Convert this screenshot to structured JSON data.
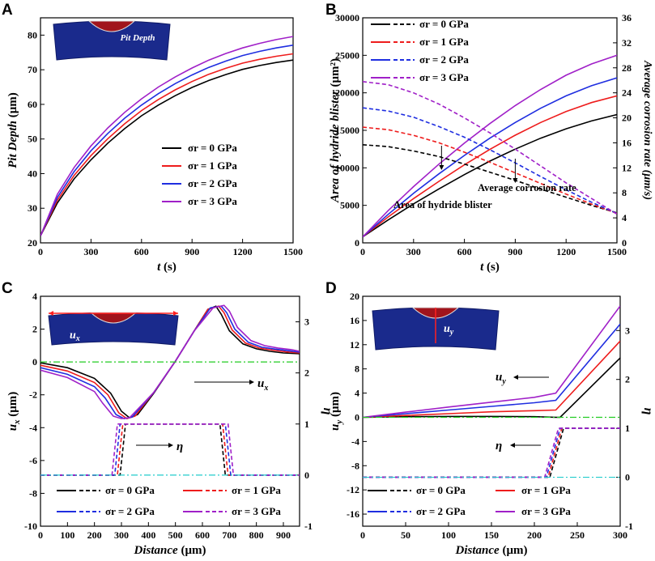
{
  "chart_data": [
    {
      "panel": "A",
      "type": "line",
      "xlabel_parts": [
        "t",
        " (s)"
      ],
      "ylabel_parts": [
        "Pit Depth",
        " (μm)"
      ],
      "xlim": [
        0,
        1500
      ],
      "ylim": [
        20,
        85
      ],
      "xticks": [
        "0",
        "300",
        "600",
        "900",
        "1200",
        "1500"
      ],
      "yticks": [
        "20",
        "30",
        "40",
        "50",
        "60",
        "70",
        "80"
      ],
      "inset_label": "Pit Depth",
      "legend_position": "right-middle",
      "series": [
        {
          "name": "σr = 0 GPa",
          "color": "#000000",
          "x": [
            0,
            100,
            200,
            300,
            400,
            500,
            600,
            700,
            800,
            900,
            1000,
            1100,
            1200,
            1300,
            1400,
            1500
          ],
          "y": [
            22,
            31.5,
            38.5,
            44,
            48.8,
            53,
            56.7,
            59.8,
            62.5,
            64.9,
            66.9,
            68.6,
            70.1,
            71.2,
            72.1,
            72.8
          ]
        },
        {
          "name": "σr = 1 GPa",
          "color": "#ee1c1c",
          "x": [
            0,
            100,
            200,
            300,
            400,
            500,
            600,
            700,
            800,
            900,
            1000,
            1100,
            1200,
            1300,
            1400,
            1500
          ],
          "y": [
            22,
            32.3,
            39.5,
            45.2,
            50.1,
            54.4,
            58.2,
            61.4,
            64.2,
            66.6,
            68.7,
            70.4,
            71.9,
            73,
            73.9,
            74.6
          ]
        },
        {
          "name": "σr = 2 GPa",
          "color": "#1f2ee0",
          "x": [
            0,
            100,
            200,
            300,
            400,
            500,
            600,
            700,
            800,
            900,
            1000,
            1100,
            1200,
            1300,
            1400,
            1500
          ],
          "y": [
            22,
            33.1,
            40.6,
            46.6,
            51.6,
            56,
            59.8,
            63.1,
            66,
            68.5,
            70.7,
            72.5,
            74.1,
            75.3,
            76.3,
            77.1
          ]
        },
        {
          "name": "σr = 3 GPa",
          "color": "#a020c8",
          "x": [
            0,
            100,
            200,
            300,
            400,
            500,
            600,
            700,
            800,
            900,
            1000,
            1100,
            1200,
            1300,
            1400,
            1500
          ],
          "y": [
            22,
            34,
            41.8,
            48,
            53.2,
            57.7,
            61.6,
            65,
            67.9,
            70.5,
            72.8,
            74.7,
            76.3,
            77.6,
            78.7,
            79.6
          ]
        }
      ]
    },
    {
      "panel": "B",
      "type": "line",
      "xlabel_parts": [
        "t",
        " (s)"
      ],
      "ylabel_parts": [
        "Area of hydride blister",
        " (μm²)"
      ],
      "y2label": "Average corrosion rate (μm/s)",
      "xlim": [
        0,
        1500
      ],
      "ylim": [
        0,
        30000
      ],
      "y2lim": [
        0,
        36
      ],
      "xticks": [
        "0",
        "300",
        "600",
        "900",
        "1200",
        "1500"
      ],
      "yticks": [
        "0",
        "5000",
        "10000",
        "15000",
        "20000",
        "25000",
        "30000"
      ],
      "y2ticks": [
        "0",
        "4",
        "8",
        "12",
        "16",
        "20",
        "24",
        "28",
        "32",
        "36"
      ],
      "annotations": [
        "Average corrosion rate",
        "Area of hydride blister"
      ],
      "legend_position": "top-left",
      "series": [
        {
          "name": "σr = 0 GPa",
          "style": "solid",
          "axis": "left",
          "color": "#000000",
          "x": [
            0,
            150,
            300,
            450,
            600,
            750,
            900,
            1050,
            1200,
            1350,
            1500
          ],
          "y": [
            800,
            3050,
            5200,
            7200,
            9100,
            10900,
            12500,
            13950,
            15200,
            16250,
            17100
          ]
        },
        {
          "name": "σr = 1 GPa",
          "style": "solid",
          "axis": "left",
          "color": "#ee1c1c",
          "x": [
            0,
            150,
            300,
            450,
            600,
            750,
            900,
            1050,
            1200,
            1350,
            1500
          ],
          "y": [
            800,
            3450,
            5900,
            8200,
            10400,
            12450,
            14350,
            16050,
            17500,
            18700,
            19600
          ]
        },
        {
          "name": "σr = 2 GPa",
          "style": "solid",
          "axis": "left",
          "color": "#1f2ee0",
          "x": [
            0,
            150,
            300,
            450,
            600,
            750,
            900,
            1050,
            1200,
            1350,
            1500
          ],
          "y": [
            800,
            3800,
            6600,
            9200,
            11650,
            13950,
            16050,
            17950,
            19600,
            20950,
            22000
          ]
        },
        {
          "name": "σr = 3 GPa",
          "style": "solid",
          "axis": "left",
          "color": "#a020c8",
          "x": [
            0,
            150,
            300,
            450,
            600,
            750,
            900,
            1050,
            1200,
            1350,
            1500
          ],
          "y": [
            800,
            4300,
            7500,
            10500,
            13300,
            15900,
            18300,
            20450,
            22350,
            23850,
            25000
          ]
        },
        {
          "name": "σr = 0 GPa",
          "style": "dashed",
          "axis": "right",
          "color": "#000000",
          "x": [
            0,
            150,
            300,
            450,
            600,
            750,
            900,
            1050,
            1200,
            1350,
            1500
          ],
          "y": [
            15.7,
            15.4,
            14.7,
            13.8,
            12.6,
            11.3,
            10,
            8.6,
            7.3,
            6,
            4.8
          ]
        },
        {
          "name": "σr = 1 GPa",
          "style": "dashed",
          "axis": "right",
          "color": "#ee1c1c",
          "x": [
            0,
            150,
            300,
            450,
            600,
            750,
            900,
            1050,
            1200,
            1350,
            1500
          ],
          "y": [
            18.5,
            18.1,
            17.2,
            16,
            14.5,
            12.9,
            11.2,
            9.5,
            7.8,
            6.2,
            4.7
          ]
        },
        {
          "name": "σr = 2 GPa",
          "style": "dashed",
          "axis": "right",
          "color": "#1f2ee0",
          "x": [
            0,
            150,
            300,
            450,
            600,
            750,
            900,
            1050,
            1200,
            1350,
            1500
          ],
          "y": [
            21.6,
            21.1,
            20.1,
            18.6,
            16.9,
            14.9,
            12.8,
            10.6,
            8.5,
            6.5,
            4.7
          ]
        },
        {
          "name": "σr = 3 GPa",
          "style": "dashed",
          "axis": "right",
          "color": "#a020c8",
          "x": [
            0,
            150,
            300,
            450,
            600,
            750,
            900,
            1050,
            1200,
            1350,
            1500
          ],
          "y": [
            25.8,
            25.3,
            24,
            22.2,
            20,
            17.6,
            15,
            12.3,
            9.6,
            7.1,
            4.6
          ]
        }
      ]
    },
    {
      "panel": "C",
      "type": "line",
      "xlabel_parts": [
        "Distance",
        " (μm)"
      ],
      "ylabel_parts": [
        "u",
        "x",
        " (μm)"
      ],
      "y2label": "η",
      "xlim": [
        0,
        960
      ],
      "ylim": [
        -10,
        4
      ],
      "y2lim": [
        -1,
        3.5
      ],
      "xticks": [
        "0",
        "100",
        "200",
        "300",
        "400",
        "500",
        "600",
        "700",
        "800",
        "900"
      ],
      "yticks": [
        "-10",
        "-8",
        "-6",
        "-4",
        "-2",
        "0",
        "2",
        "4"
      ],
      "y2ticks": [
        "-1",
        "0",
        "1",
        "2",
        "3"
      ],
      "annotations": [
        "u",
        "x",
        "η"
      ],
      "legend": [
        "σr = 0 GPa",
        "σr = 1 GPa",
        "σr = 2 GPa",
        "σr = 3 GPa"
      ],
      "legend_position": "bottom",
      "series": [
        {
          "name": "σr = 0 GPa",
          "style": "solid",
          "axis": "left",
          "color": "#000000",
          "x": [
            0,
            100,
            200,
            260,
            300,
            330,
            360,
            420,
            500,
            570,
            620,
            650,
            670,
            700,
            750,
            800,
            850,
            900,
            960
          ],
          "y": [
            -0.05,
            -0.35,
            -1.0,
            -1.9,
            -3.0,
            -3.4,
            -3.2,
            -1.9,
            0.05,
            1.9,
            3.2,
            3.4,
            2.9,
            1.9,
            1.1,
            0.8,
            0.65,
            0.55,
            0.5
          ]
        },
        {
          "name": "σr = 1 GPa",
          "style": "solid",
          "axis": "left",
          "color": "#ee1c1c",
          "x": [
            0,
            100,
            200,
            250,
            290,
            320,
            350,
            420,
            500,
            570,
            620,
            660,
            680,
            710,
            760,
            810,
            860,
            910,
            960
          ],
          "y": [
            -0.2,
            -0.55,
            -1.25,
            -2.0,
            -3.1,
            -3.45,
            -3.3,
            -1.85,
            0.05,
            1.9,
            3.2,
            3.4,
            3.0,
            1.95,
            1.15,
            0.85,
            0.72,
            0.62,
            0.55
          ]
        },
        {
          "name": "σr = 2 GPa",
          "style": "solid",
          "axis": "left",
          "color": "#1f2ee0",
          "x": [
            0,
            100,
            200,
            240,
            280,
            310,
            340,
            420,
            500,
            570,
            630,
            670,
            690,
            720,
            770,
            820,
            870,
            920,
            960
          ],
          "y": [
            -0.35,
            -0.75,
            -1.5,
            -2.2,
            -3.2,
            -3.45,
            -3.35,
            -1.85,
            0.05,
            1.9,
            3.3,
            3.4,
            3.0,
            2.0,
            1.2,
            0.9,
            0.78,
            0.68,
            0.6
          ]
        },
        {
          "name": "σr = 3 GPa",
          "style": "solid",
          "axis": "left",
          "color": "#a020c8",
          "x": [
            0,
            100,
            200,
            230,
            270,
            300,
            330,
            420,
            500,
            570,
            640,
            680,
            700,
            730,
            780,
            830,
            880,
            930,
            960
          ],
          "y": [
            -0.5,
            -0.95,
            -1.8,
            -2.5,
            -3.3,
            -3.45,
            -3.4,
            -1.85,
            0.05,
            1.9,
            3.3,
            3.45,
            3.1,
            2.1,
            1.3,
            1.0,
            0.85,
            0.75,
            0.65
          ]
        },
        {
          "name": "σr = 0 GPa",
          "style": "dashed",
          "axis": "right",
          "color": "#000000",
          "x": [
            0,
            295,
            305,
            315,
            665,
            675,
            685,
            960
          ],
          "y": [
            0,
            0,
            0.5,
            1,
            1,
            0.5,
            0,
            0
          ]
        },
        {
          "name": "σr = 1 GPa",
          "style": "dashed",
          "axis": "right",
          "color": "#ee1c1c",
          "x": [
            0,
            285,
            295,
            305,
            675,
            685,
            695,
            960
          ],
          "y": [
            0,
            0,
            0.5,
            1,
            1,
            0.5,
            0,
            0
          ]
        },
        {
          "name": "σr = 2 GPa",
          "style": "dashed",
          "axis": "right",
          "color": "#1f2ee0",
          "x": [
            0,
            275,
            285,
            295,
            685,
            695,
            705,
            960
          ],
          "y": [
            0,
            0,
            0.5,
            1,
            1,
            0.5,
            0,
            0
          ]
        },
        {
          "name": "σr = 3 GPa",
          "style": "dashed",
          "axis": "right",
          "color": "#a020c8",
          "x": [
            0,
            265,
            275,
            285,
            695,
            705,
            715,
            960
          ],
          "y": [
            0,
            0,
            0.5,
            1,
            1,
            0.5,
            0,
            0
          ]
        }
      ]
    },
    {
      "panel": "D",
      "type": "line",
      "xlabel_parts": [
        "Distance",
        " (μm)"
      ],
      "ylabel_parts": [
        "u",
        "y",
        " (μm)"
      ],
      "y2label": "η",
      "xlim": [
        0,
        300
      ],
      "ylim": [
        -18,
        20
      ],
      "y2lim": [
        -1,
        3.7
      ],
      "xticks": [
        "0",
        "50",
        "100",
        "150",
        "200",
        "250",
        "300"
      ],
      "yticks": [
        "-16",
        "-12",
        "-8",
        "-4",
        "0",
        "4",
        "8",
        "12",
        "16",
        "20"
      ],
      "y2ticks": [
        "-1",
        "0",
        "1",
        "2",
        "3"
      ],
      "annotations": [
        "u",
        "y",
        "η"
      ],
      "legend": [
        "σr = 0 GPa",
        "σr = 1 GPa",
        "σr = 2 GPa",
        "σr = 3 GPa"
      ],
      "legend_position": "bottom",
      "series": [
        {
          "name": "σr = 0 GPa",
          "style": "solid",
          "axis": "left",
          "color": "#000000",
          "x": [
            0,
            50,
            100,
            150,
            200,
            225,
            230,
            300
          ],
          "y": [
            0,
            0.1,
            0.15,
            0.15,
            0.1,
            0,
            0,
            9.8
          ]
        },
        {
          "name": "σr = 1 GPa",
          "style": "solid",
          "axis": "left",
          "color": "#ee1c1c",
          "x": [
            0,
            50,
            100,
            150,
            200,
            225,
            300
          ],
          "y": [
            0,
            0.3,
            0.6,
            0.9,
            1.1,
            1.2,
            12.6
          ]
        },
        {
          "name": "σr = 2 GPa",
          "style": "solid",
          "axis": "left",
          "color": "#1f2ee0",
          "x": [
            0,
            50,
            100,
            150,
            200,
            225,
            300
          ],
          "y": [
            0,
            0.6,
            1.2,
            1.8,
            2.4,
            2.8,
            15.4
          ]
        },
        {
          "name": "σr = 3 GPa",
          "style": "solid",
          "axis": "left",
          "color": "#a020c8",
          "x": [
            0,
            50,
            100,
            150,
            200,
            225,
            300
          ],
          "y": [
            0,
            0.85,
            1.7,
            2.5,
            3.3,
            4.0,
            18.4
          ]
        },
        {
          "name": "σr = 0 GPa",
          "style": "dashed",
          "axis": "right",
          "color": "#000000",
          "x": [
            0,
            218,
            226,
            234,
            300
          ],
          "y": [
            0,
            0,
            0.5,
            1,
            1
          ]
        },
        {
          "name": "σr = 1 GPa",
          "style": "dashed",
          "axis": "right",
          "color": "#ee1c1c",
          "x": [
            0,
            216,
            224,
            232,
            300
          ],
          "y": [
            0,
            0,
            0.5,
            1,
            1
          ]
        },
        {
          "name": "σr = 2 GPa",
          "style": "dashed",
          "axis": "right",
          "color": "#1f2ee0",
          "x": [
            0,
            214,
            222,
            230,
            300
          ],
          "y": [
            0,
            0,
            0.5,
            1,
            1
          ]
        },
        {
          "name": "σr = 3 GPa",
          "style": "dashed",
          "axis": "right",
          "color": "#a020c8",
          "x": [
            0,
            212,
            220,
            228,
            300
          ],
          "y": [
            0,
            0,
            0.5,
            1,
            1
          ]
        }
      ]
    }
  ]
}
